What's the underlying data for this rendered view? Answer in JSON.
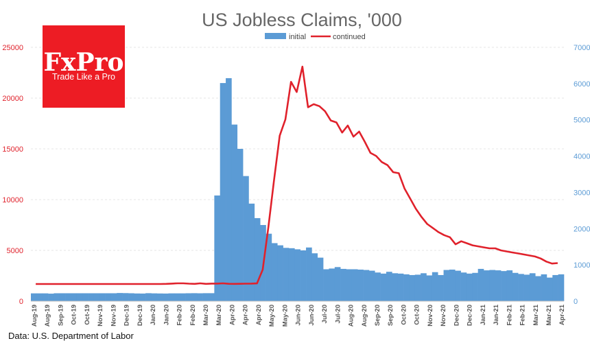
{
  "chart_data": {
    "type": "bar+line",
    "title": "US Jobless Claims, '000",
    "source": "Data: U.S. Department of Labor",
    "legend": {
      "position": "top-center",
      "entries": [
        {
          "name": "initial",
          "type": "bar",
          "color": "#5b9bd5"
        },
        {
          "name": "continued",
          "type": "line",
          "color": "#e0212b"
        }
      ]
    },
    "x_tick_labels": [
      "Aug-19",
      "Aug-19",
      "Sep-19",
      "Oct-19",
      "Oct-19",
      "Nov-19",
      "Nov-19",
      "Dec-19",
      "Dec-19",
      "Jan-20",
      "Jan-20",
      "Feb-20",
      "Feb-20",
      "Mar-20",
      "Mar-20",
      "Apr-20",
      "Apr-20",
      "Apr-20",
      "May-20",
      "May-20",
      "Jun-20",
      "Jun-20",
      "Jul-20",
      "Jul-20",
      "Aug-20",
      "Aug-20",
      "Sep-20",
      "Sep-20",
      "Oct-20",
      "Oct-20",
      "Nov-20",
      "Nov-20",
      "Dec-20",
      "Dec-20",
      "Jan-21",
      "Jan-21",
      "Feb-21",
      "Feb-21",
      "Mar-21",
      "Mar-21",
      "Apr-21"
    ],
    "left_axis": {
      "ylim": [
        0,
        25000
      ],
      "ticks": [
        "0",
        "5000",
        "10000",
        "15000",
        "20000",
        "25000"
      ],
      "color": "#e0212b",
      "series": "continued"
    },
    "right_axis": {
      "ylim": [
        0,
        7000
      ],
      "ticks": [
        "0",
        "1000",
        "2000",
        "3000",
        "4000",
        "5000",
        "6000",
        "7000"
      ],
      "color": "#5b9bd5",
      "series": "initial"
    },
    "grid": true,
    "series": [
      {
        "name": "initial",
        "type": "bar",
        "axis": "right",
        "values": [
          215,
          215,
          215,
          207,
          218,
          218,
          218,
          218,
          218,
          218,
          218,
          218,
          218,
          218,
          218,
          225,
          222,
          218,
          212,
          210,
          220,
          215,
          212,
          210,
          215,
          215,
          215,
          218,
          220,
          217,
          220,
          220,
          2914,
          6015,
          6150,
          4870,
          4200,
          3450,
          2690,
          2290,
          2100,
          1860,
          1600,
          1540,
          1470,
          1460,
          1430,
          1400,
          1480,
          1320,
          1200,
          880,
          900,
          940,
          890,
          880,
          880,
          870,
          860,
          840,
          790,
          760,
          810,
          770,
          760,
          740,
          720,
          730,
          770,
          710,
          800,
          720,
          860,
          870,
          840,
          790,
          760,
          780,
          890,
          850,
          860,
          850,
          830,
          850,
          780,
          750,
          730,
          770,
          690,
          740,
          650,
          720,
          740
        ]
      },
      {
        "name": "continued",
        "type": "line",
        "axis": "left",
        "values": [
          1690,
          1690,
          1690,
          1690,
          1690,
          1690,
          1690,
          1690,
          1690,
          1690,
          1690,
          1690,
          1690,
          1690,
          1690,
          1690,
          1690,
          1690,
          1690,
          1690,
          1690,
          1690,
          1690,
          1700,
          1730,
          1760,
          1760,
          1720,
          1700,
          1760,
          1700,
          1730,
          1730,
          1760,
          1710,
          1700,
          1710,
          1720,
          1730,
          1750,
          3100,
          7300,
          11900,
          16300,
          17900,
          21600,
          20600,
          23100,
          19100,
          19400,
          19200,
          18700,
          17800,
          17600,
          16600,
          17300,
          16200,
          16700,
          15700,
          14600,
          14300,
          13700,
          13400,
          12700,
          12600,
          11100,
          10100,
          9100,
          8300,
          7600,
          7200,
          6800,
          6500,
          6300,
          5600,
          5900,
          5700,
          5500,
          5400,
          5300,
          5200,
          5200,
          5000,
          4900,
          4800,
          4700,
          4600,
          4500,
          4400,
          4200,
          3900,
          3700,
          3750
        ]
      }
    ]
  },
  "logo": {
    "brand": "FxPro",
    "tagline": "Trade Like a Pro",
    "color": "#ed1c24"
  }
}
